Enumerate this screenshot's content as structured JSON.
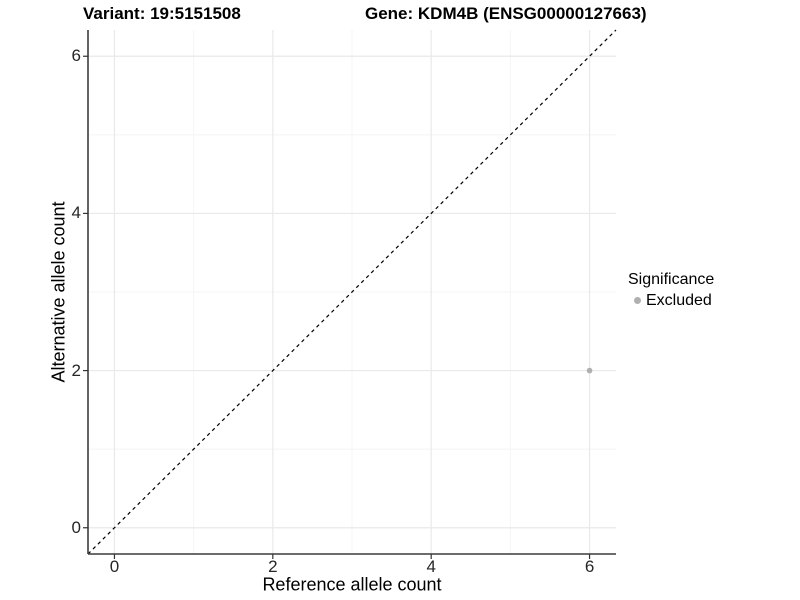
{
  "chart_data": {
    "type": "scatter",
    "title_left": "Variant: 19:5151508",
    "title_right": "Gene: KDM4B (ENSG00000127663)",
    "xlabel": "Reference allele count",
    "ylabel": "Alternative allele count",
    "xlim": [
      -0.334,
      6.334
    ],
    "ylim": [
      -0.334,
      6.334
    ],
    "x_ticks": [
      0,
      2,
      4,
      6
    ],
    "y_ticks": [
      0,
      2,
      4,
      6
    ],
    "x_minor_ticks": [
      1,
      3,
      5
    ],
    "y_minor_ticks": [
      1,
      3,
      5
    ],
    "grid": "major+minor",
    "series": [
      {
        "name": "Excluded",
        "marker": "circle",
        "color": "#b0b0b0",
        "points": [
          [
            6,
            2
          ]
        ]
      }
    ],
    "reference_line": {
      "type": "identity y=x",
      "style": "dashed",
      "color": "#000000"
    },
    "legend": {
      "title": "Significance",
      "position": "right",
      "items": [
        {
          "label": "Excluded",
          "color": "#b0b0b0"
        }
      ]
    }
  },
  "colors": {
    "background": "#ffffff",
    "grid_major": "#e9e9e9",
    "grid_minor": "#f4f4f4",
    "axis_line": "#3c3c3c",
    "tick_mark": "#333333",
    "point": "#b0b0b0"
  }
}
